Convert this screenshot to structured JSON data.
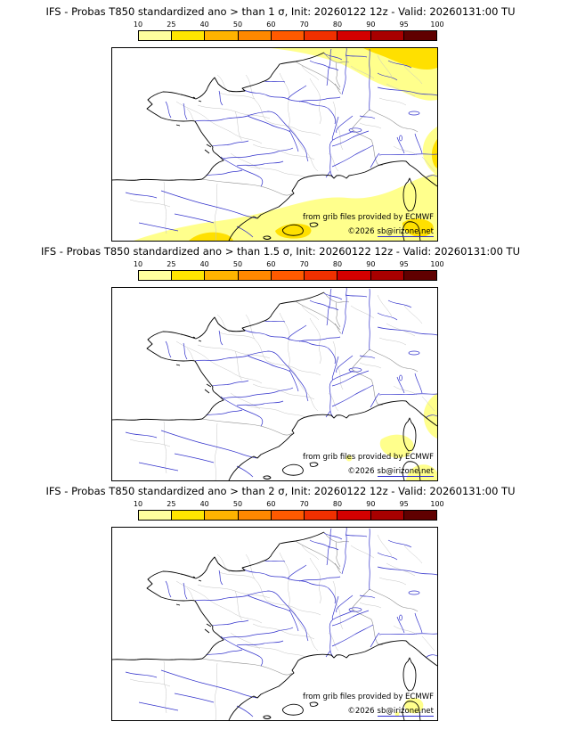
{
  "page": {
    "background": "#ffffff"
  },
  "panels": [
    {
      "title": "IFS - Probas T850  standardized ano > than 1 σ, Init: 20260122 12z - Valid: 20260131:00 TU"
    },
    {
      "title": "IFS - Probas T850  standardized ano > than 1.5 σ, Init: 20260122 12z - Valid: 20260131:00 TU"
    },
    {
      "title": "IFS - Probas T850  standardized ano > than 2 σ, Init: 20260122 12z - Valid: 20260131:00 TU"
    }
  ],
  "colorbar": {
    "ticks": [
      "10",
      "25",
      "40",
      "50",
      "60",
      "70",
      "80",
      "90",
      "95",
      "100"
    ],
    "colors": [
      "#ffff9e",
      "#ffe600",
      "#ffb300",
      "#ff8800",
      "#ff5a00",
      "#f03000",
      "#d40000",
      "#a80000",
      "#600000"
    ]
  },
  "credits": {
    "line1": "from grib files provided by ECMWF",
    "copyright": "©2026",
    "site": "sb@irizone.net"
  },
  "map_colors": {
    "coast": "#000000",
    "border": "#8f8f8f",
    "department": "#c4c4c4",
    "river": "#3333cc",
    "prob_10_25": "#ffff8c",
    "prob_25_40": "#ffe000"
  }
}
